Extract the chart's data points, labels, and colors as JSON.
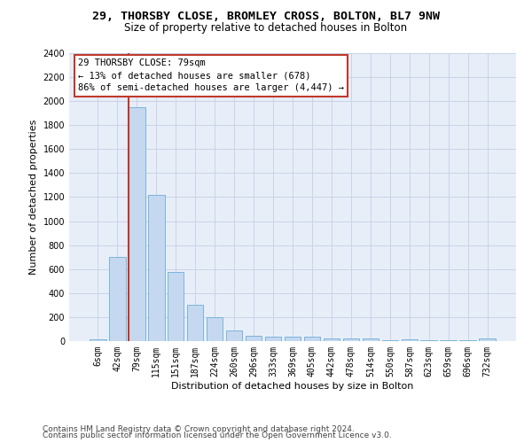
{
  "title_line1": "29, THORSBY CLOSE, BROMLEY CROSS, BOLTON, BL7 9NW",
  "title_line2": "Size of property relative to detached houses in Bolton",
  "xlabel": "Distribution of detached houses by size in Bolton",
  "ylabel": "Number of detached properties",
  "categories": [
    "6sqm",
    "42sqm",
    "79sqm",
    "115sqm",
    "151sqm",
    "187sqm",
    "224sqm",
    "260sqm",
    "296sqm",
    "333sqm",
    "369sqm",
    "405sqm",
    "442sqm",
    "478sqm",
    "514sqm",
    "550sqm",
    "587sqm",
    "623sqm",
    "659sqm",
    "696sqm",
    "732sqm"
  ],
  "values": [
    15,
    700,
    1950,
    1220,
    575,
    305,
    200,
    85,
    47,
    40,
    40,
    35,
    25,
    20,
    20,
    5,
    15,
    5,
    5,
    5,
    20
  ],
  "bar_color": "#c5d8f0",
  "bar_edge_color": "#6baed6",
  "highlight_index": 2,
  "highlight_line_color": "#c0392b",
  "annotation_text_line1": "29 THORSBY CLOSE: 79sqm",
  "annotation_text_line2": "← 13% of detached houses are smaller (678)",
  "annotation_text_line3": "86% of semi-detached houses are larger (4,447) →",
  "annotation_box_color": "#c0392b",
  "ylim": [
    0,
    2400
  ],
  "yticks": [
    0,
    200,
    400,
    600,
    800,
    1000,
    1200,
    1400,
    1600,
    1800,
    2000,
    2200,
    2400
  ],
  "footer_line1": "Contains HM Land Registry data © Crown copyright and database right 2024.",
  "footer_line2": "Contains public sector information licensed under the Open Government Licence v3.0.",
  "bg_color": "#ffffff",
  "axes_bg_color": "#e8eef8",
  "grid_color": "#c8d4e8",
  "title_fontsize": 9.5,
  "subtitle_fontsize": 8.5,
  "axis_label_fontsize": 8,
  "tick_fontsize": 7,
  "annotation_fontsize": 7.5,
  "footer_fontsize": 6.5
}
